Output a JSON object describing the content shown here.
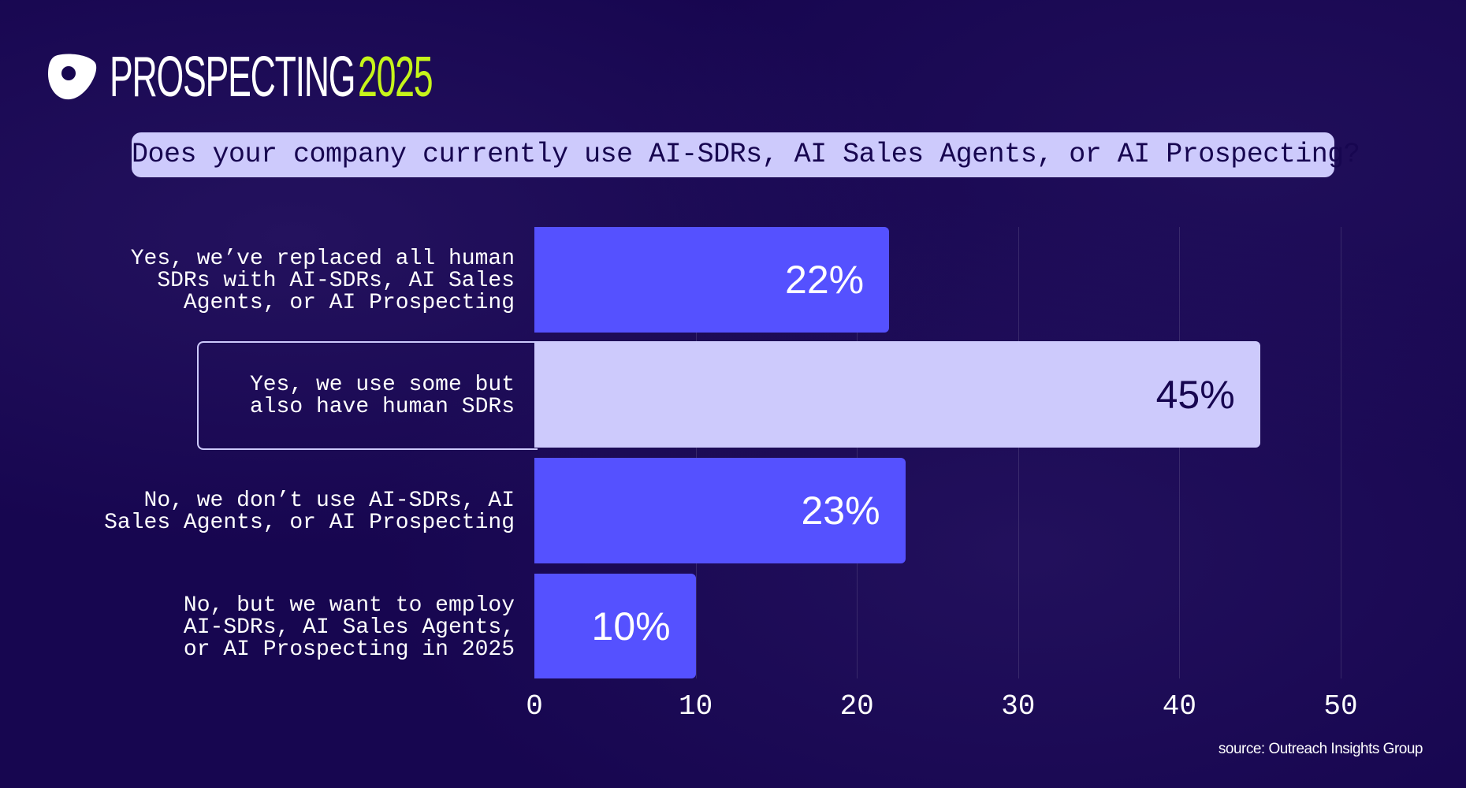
{
  "brand": {
    "word": "PROSPECTING",
    "year": "2025",
    "year_color": "#c6f51a"
  },
  "question": "Does your company currently use AI-SDRs, AI Sales Agents, or AI Prospecting?",
  "source": "source: Outreach Insights Group",
  "chart_data": {
    "type": "bar",
    "orientation": "horizontal",
    "categories": [
      "Yes, we’ve replaced all human\nSDRs with AI-SDRs, AI Sales\nAgents, or AI Prospecting",
      "Yes, we use some but\nalso have human SDRs",
      "No, we don’t use AI-SDRs, AI\nSales Agents, or AI Prospecting",
      "No, but we want to employ\nAI-SDRs, AI Sales Agents,\nor AI Prospecting in 2025"
    ],
    "values": [
      22,
      45,
      23,
      10
    ],
    "value_labels": [
      "22%",
      "45%",
      "23%",
      "10%"
    ],
    "highlighted_index": 1,
    "xlim": [
      0,
      50
    ],
    "xticks": [
      "0",
      "10",
      "20",
      "30",
      "40",
      "50"
    ],
    "grid": true,
    "colors": {
      "bar": "#5551ff",
      "highlight": "#cdcafc",
      "background": "#170650"
    }
  }
}
